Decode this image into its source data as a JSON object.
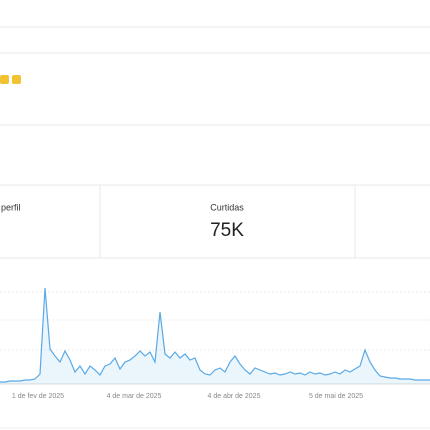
{
  "metrics": [
    {
      "label": "perfil"
    },
    {
      "label": "Curtidas",
      "value": "75K"
    }
  ],
  "chart_data": {
    "type": "area",
    "color": "#5aa9e6",
    "x_labels": [
      "1 de fev de 2025",
      "4 de mar de 2025",
      "4 de abr de 2025",
      "5 de mai de 2025"
    ],
    "values": [
      2,
      2,
      3,
      3,
      3,
      4,
      4,
      5,
      10,
      96,
      35,
      28,
      22,
      33,
      24,
      12,
      18,
      10,
      18,
      14,
      9,
      18,
      20,
      26,
      15,
      22,
      24,
      28,
      33,
      28,
      32,
      22,
      72,
      30,
      26,
      32,
      26,
      30,
      24,
      26,
      14,
      10,
      9,
      14,
      16,
      12,
      22,
      28,
      20,
      14,
      10,
      16,
      14,
      12,
      10,
      11,
      9,
      10,
      12,
      10,
      11,
      9,
      12,
      10,
      11,
      9,
      10,
      12,
      10,
      14,
      12,
      15,
      18,
      34,
      22,
      14,
      8,
      7,
      6,
      6,
      5,
      5,
      5,
      4,
      4,
      4,
      4
    ]
  }
}
